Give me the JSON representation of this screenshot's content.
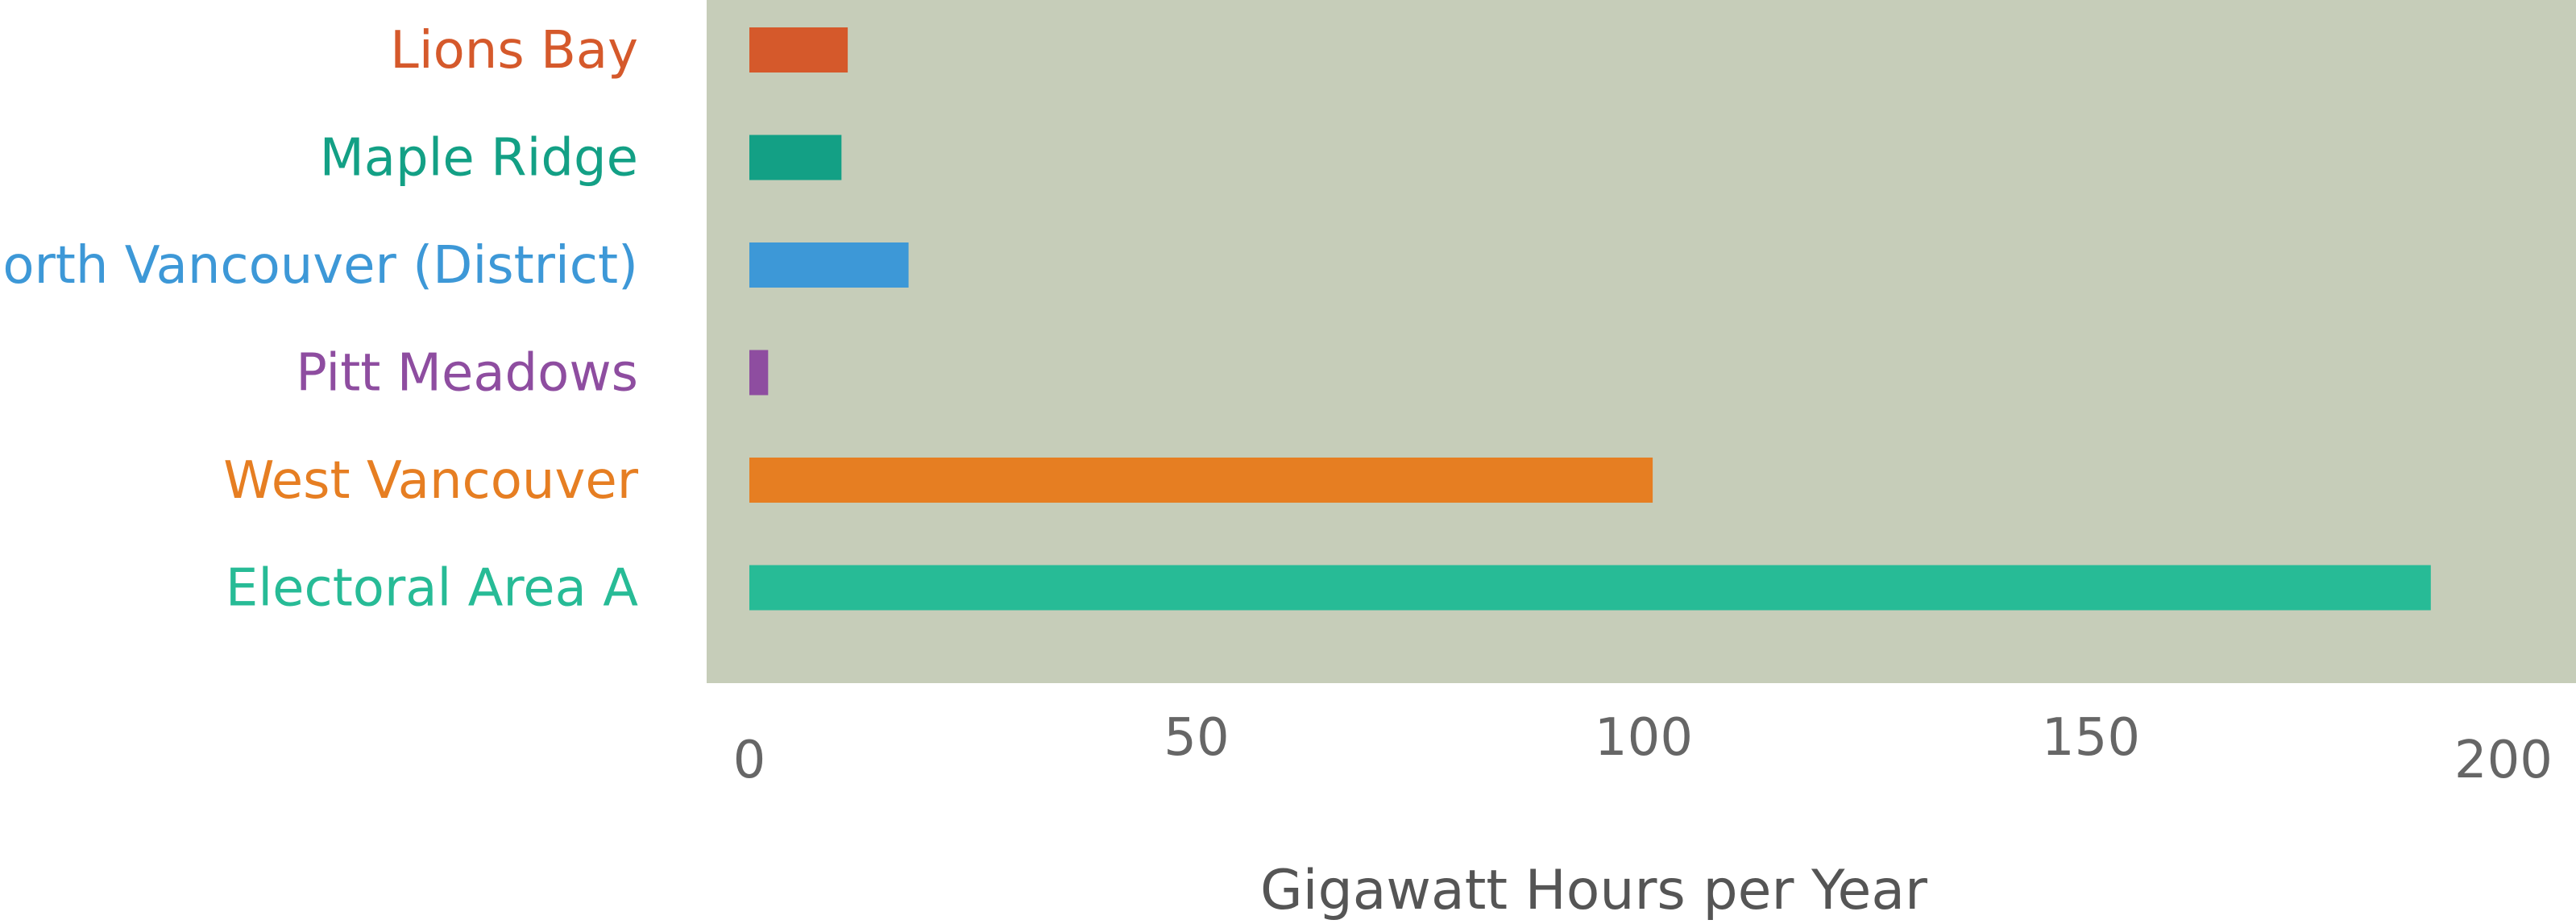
{
  "chart_data": {
    "type": "bar",
    "orientation": "horizontal",
    "title": "",
    "xlabel": "Gigawatt Hours per Year",
    "ylabel": "",
    "xlim": [
      0,
      200
    ],
    "x_ticks": [
      "0",
      "50",
      "100",
      "150",
      "200"
    ],
    "x_tick_values": [
      0,
      50,
      100,
      150,
      200
    ],
    "grid": false,
    "legend": "none",
    "plot_background": "#c6cdb9",
    "categories": [
      "Lions Bay",
      "Maple Ridge",
      "North Vancouver (District)",
      "Pitt Meadows",
      "West Vancouver",
      "Electoral Area A"
    ],
    "values": [
      11,
      10.3,
      17.8,
      2.1,
      101,
      188
    ],
    "colors": [
      "#d5592b",
      "#13a085",
      "#3d98d7",
      "#8e4da0",
      "#e67e22",
      "#27bb96"
    ]
  }
}
